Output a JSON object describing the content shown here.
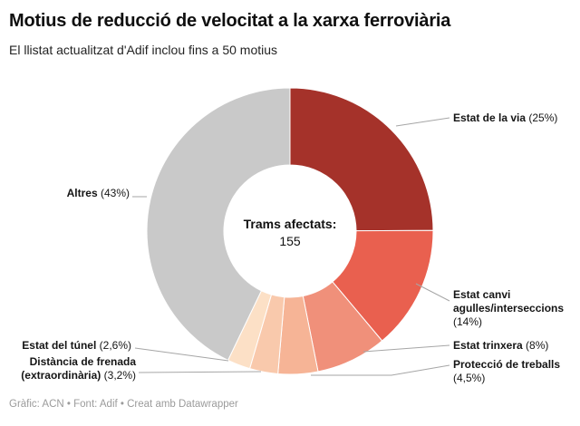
{
  "footer": {
    "credit": "Gràfic: ACN • Font: Adif • Creat amb Datawrapper"
  },
  "chart_data": {
    "type": "pie",
    "subtype": "donut",
    "title": "Motius de reducció de velocitat a la xarxa ferroviària",
    "subtitle": "El llistat actualitzat d'Adif inclou fins a 50 motius",
    "units": "%",
    "center": {
      "label": "Trams afectats:",
      "value": 155
    },
    "legend": "none, direct labels with leader lines",
    "series": [
      {
        "name": "Estat de la via",
        "pct_label": "(25%)",
        "value": 25,
        "color": "#a5322a"
      },
      {
        "name": "Estat canvi agulles/interseccions",
        "pct_label": "(14%)",
        "value": 14,
        "color": "#e9604f"
      },
      {
        "name": "Estat trinxera",
        "pct_label": "(8%)",
        "value": 8,
        "color": "#f0907a"
      },
      {
        "name": "Protecció de treballs",
        "pct_label": "(4,5%)",
        "value": 4.5,
        "color": "#f6b496"
      },
      {
        "name": "Distància de frenada (extraordinària)",
        "pct_label": "(3,2%)",
        "value": 3.2,
        "color": "#f9c9ac"
      },
      {
        "name": "Estat del túnel",
        "pct_label": "(2,6%)",
        "value": 2.6,
        "color": "#fce0c6"
      },
      {
        "name": "Altres",
        "pct_label": "(43%)",
        "value": 43,
        "color": "#c9c9c9"
      }
    ]
  }
}
